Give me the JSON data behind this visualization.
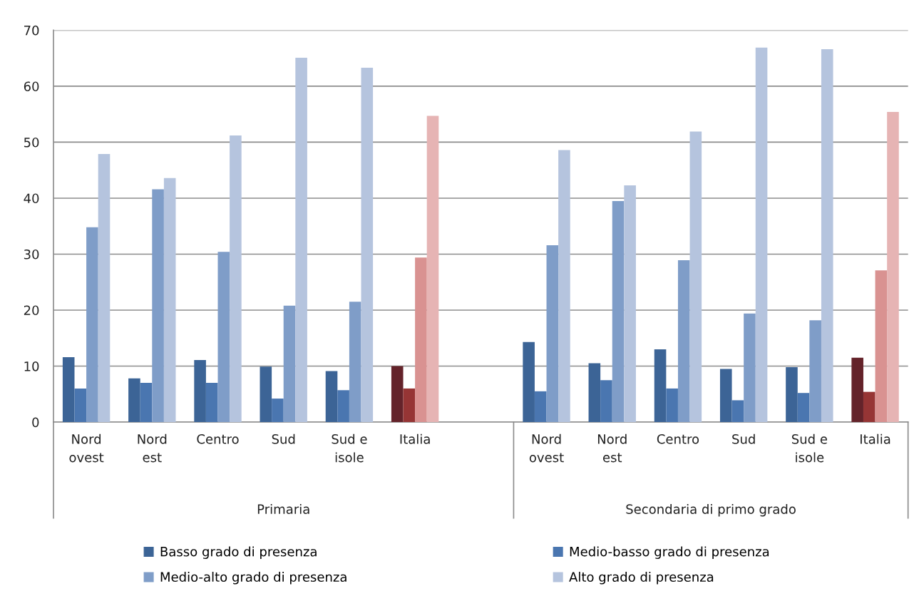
{
  "chart_data": {
    "type": "bar",
    "categories": [
      "Nord\novest",
      "Nord\nest",
      "Centro",
      "Sud",
      "Sud e\nisole",
      "Italia",
      null,
      "Nord\novest",
      "Nord\nest",
      "Centro",
      "Sud",
      "Sud e\nisole",
      "Italia"
    ],
    "annotations": [
      "Primaria",
      "Secondaria di primo grado"
    ],
    "series": [
      {
        "name": "Basso grado di presenza",
        "color": "#3c6496",
        "colors": [
          "#3c6496",
          "#3c6496",
          "#3c6496",
          "#3c6496",
          "#3c6496",
          "#64232a",
          "#3c6496",
          "#3c6496",
          "#3c6496",
          "#3c6496",
          "#3c6496",
          "#3c6496",
          "#64232a"
        ],
        "values": [
          11.6,
          7.8,
          11.1,
          9.9,
          9.1,
          10.0,
          null,
          14.3,
          10.5,
          13.0,
          9.5,
          9.8,
          11.5
        ]
      },
      {
        "name": "Medio-basso grado di presenza",
        "color": "#4a76b0",
        "colors": [
          "#4a76b0",
          "#4a76b0",
          "#4a76b0",
          "#4a76b0",
          "#4a76b0",
          "#963535",
          "#4a76b0",
          "#4a76b0",
          "#4a76b0",
          "#4a76b0",
          "#4a76b0",
          "#4a76b0",
          "#963535"
        ],
        "values": [
          6.0,
          7.0,
          7.0,
          4.2,
          5.7,
          6.0,
          null,
          5.5,
          7.5,
          6.0,
          3.9,
          5.2,
          5.4
        ]
      },
      {
        "name": "Medio-alto grado di presenza",
        "color": "#7f9dc8",
        "colors": [
          "#7f9dc8",
          "#7f9dc8",
          "#7f9dc8",
          "#7f9dc8",
          "#7f9dc8",
          "#d99291",
          "#7f9dc8",
          "#7f9dc8",
          "#7f9dc8",
          "#7f9dc8",
          "#7f9dc8",
          "#7f9dc8",
          "#d99291"
        ],
        "values": [
          34.8,
          41.6,
          30.4,
          20.8,
          21.5,
          29.4,
          null,
          31.6,
          39.5,
          28.9,
          19.4,
          18.2,
          27.1
        ]
      },
      {
        "name": "Alto grado di presenza",
        "color": "#b5c4de",
        "colors": [
          "#b5c4de",
          "#b5c4de",
          "#b5c4de",
          "#b5c4de",
          "#b5c4de",
          "#e6b4b4",
          "#b5c4de",
          "#b5c4de",
          "#b5c4de",
          "#b5c4de",
          "#b5c4de",
          "#b5c4de",
          "#e6b4b4"
        ],
        "values": [
          47.9,
          43.6,
          51.2,
          65.1,
          63.3,
          54.7,
          null,
          48.6,
          42.3,
          51.9,
          66.9,
          66.6,
          55.4
        ]
      }
    ],
    "ylim": [
      0,
      70
    ],
    "yticks": [
      0,
      10,
      20,
      30,
      40,
      50,
      60,
      70
    ],
    "grid": "y",
    "legend": "bottom"
  }
}
